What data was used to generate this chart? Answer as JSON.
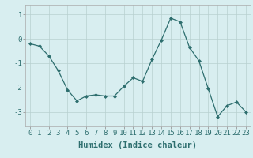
{
  "x": [
    0,
    1,
    2,
    3,
    4,
    5,
    6,
    7,
    8,
    9,
    10,
    11,
    12,
    13,
    14,
    15,
    16,
    17,
    18,
    19,
    20,
    21,
    22,
    23
  ],
  "y": [
    -0.2,
    -0.3,
    -0.7,
    -1.3,
    -2.1,
    -2.55,
    -2.35,
    -2.3,
    -2.35,
    -2.35,
    -1.95,
    -1.6,
    -1.75,
    -0.85,
    -0.05,
    0.85,
    0.7,
    -0.35,
    -0.9,
    -2.05,
    -3.2,
    -2.75,
    -2.6,
    -3.0
  ],
  "line_color": "#2d6e6e",
  "marker": "D",
  "marker_size": 2.0,
  "bg_color": "#d8eef0",
  "grid_color": "#b8d0d0",
  "xlabel": "Humidex (Indice chaleur)",
  "xlabel_fontsize": 7.5,
  "tick_fontsize": 6.5,
  "ylim": [
    -3.6,
    1.4
  ],
  "xlim": [
    -0.5,
    23.5
  ],
  "yticks": [
    -3,
    -2,
    -1,
    0,
    1
  ],
  "xtick_labels": [
    "0",
    "1",
    "2",
    "3",
    "4",
    "5",
    "6",
    "7",
    "8",
    "9",
    "10",
    "11",
    "12",
    "13",
    "14",
    "15",
    "16",
    "17",
    "18",
    "19",
    "20",
    "21",
    "22",
    "23"
  ]
}
